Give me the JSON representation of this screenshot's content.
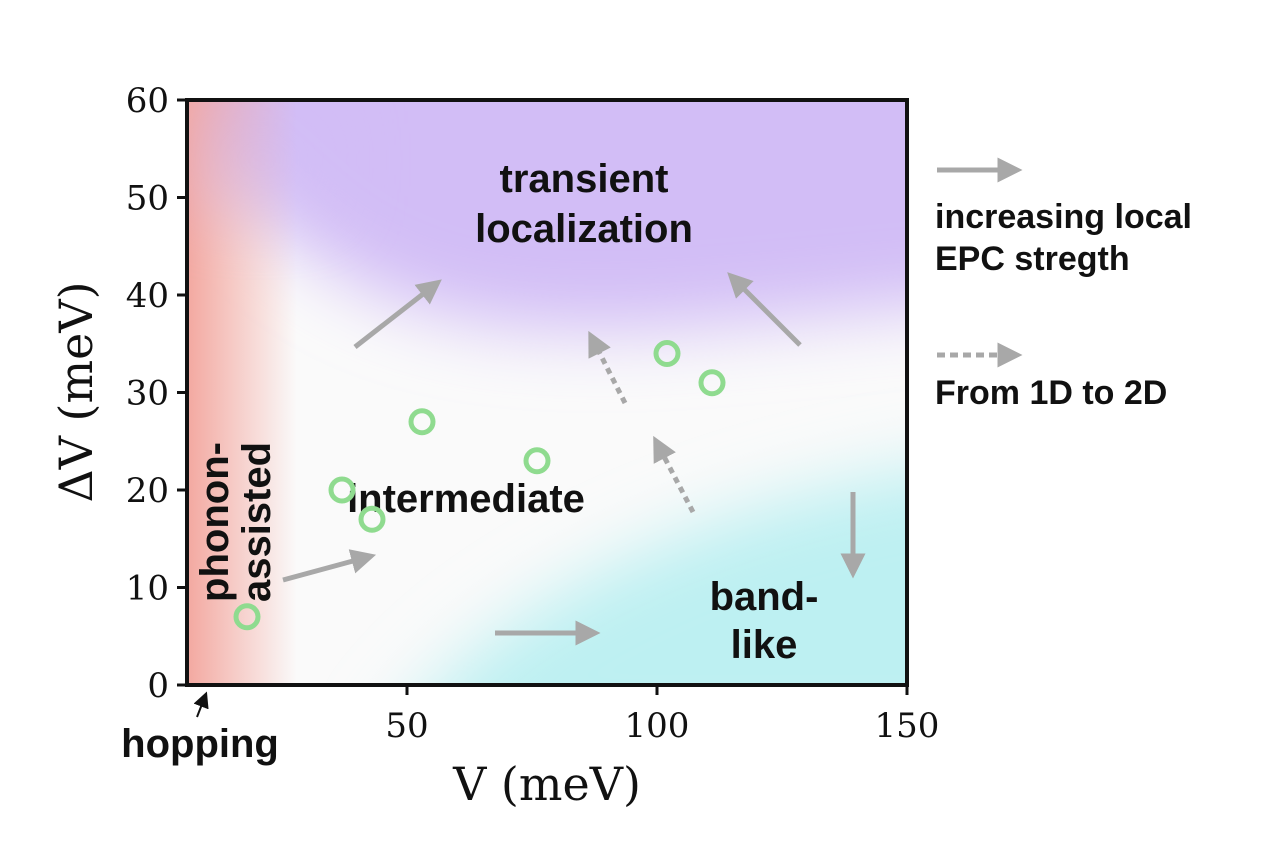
{
  "chart_data": {
    "type": "scatter",
    "x_label": "V (meV)",
    "y_label": "ΔV (meV)",
    "x": [
      18,
      37,
      43,
      53,
      76,
      102,
      111
    ],
    "values": [
      7,
      20,
      17,
      27,
      23,
      34,
      31
    ],
    "color": "#8fdb8f",
    "xlim": [
      6,
      150
    ],
    "xticks": [
      50,
      100,
      150
    ],
    "ylim": [
      0,
      60
    ],
    "yticks": [
      0,
      10,
      20,
      30,
      40,
      50,
      60
    ],
    "regions": [
      {
        "lines": [
          "transient",
          "localization"
        ]
      },
      {
        "lines": [
          "intermediate"
        ]
      },
      {
        "lines": [
          "band-",
          "like"
        ]
      },
      {
        "lines": [
          "phonon-",
          "assisted"
        ]
      },
      {
        "lines": [
          "hopping"
        ]
      }
    ],
    "legend": [
      {
        "style": "solid",
        "lines": [
          "increasing local",
          "EPC stregth"
        ]
      },
      {
        "style": "dotted",
        "lines": [
          "From 1D to 2D"
        ]
      }
    ]
  }
}
